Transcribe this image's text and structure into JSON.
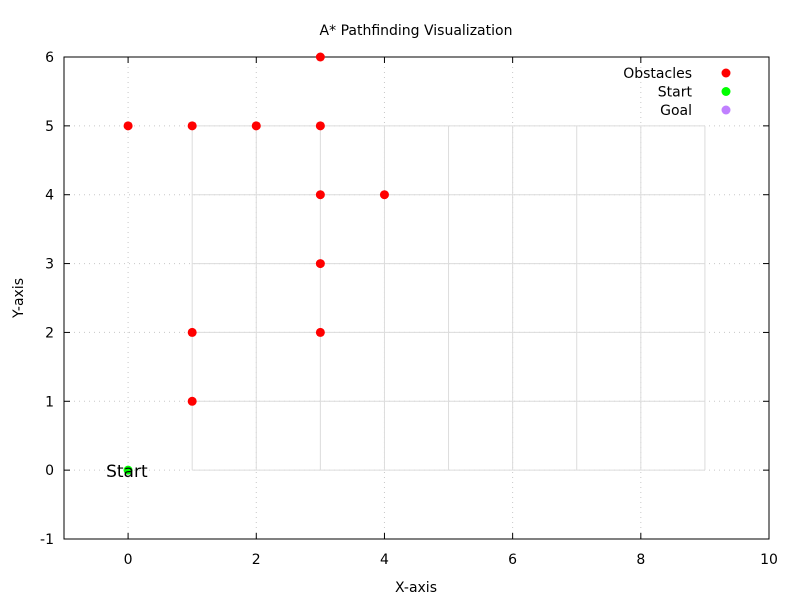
{
  "chart_data": {
    "type": "scatter",
    "title": "A* Pathfinding Visualization",
    "xlabel": "X-axis",
    "ylabel": "Y-axis",
    "xlim": [
      -1,
      10
    ],
    "ylim": [
      -1,
      6
    ],
    "xticks": [
      0,
      2,
      4,
      6,
      8,
      10
    ],
    "yticks": [
      -1,
      0,
      1,
      2,
      3,
      4,
      5,
      6
    ],
    "xtick_labels": [
      "0",
      "2",
      "4",
      "6",
      "8",
      "10"
    ],
    "ytick_labels": [
      "-1",
      "0",
      "1",
      "2",
      "3",
      "4",
      "5",
      "6"
    ],
    "grid": true,
    "legend_position": "top-right",
    "grid_cells": {
      "vertical_lines_x": [
        1,
        2,
        3,
        4,
        5,
        6,
        7,
        8,
        9
      ],
      "horizontal_lines_y": [
        0,
        1,
        2,
        3,
        4,
        5
      ],
      "x_range": [
        1,
        9
      ],
      "y_range": [
        0,
        5
      ]
    },
    "series": [
      {
        "name": "Obstacles",
        "color": "#ff0000",
        "points": [
          [
            0,
            5
          ],
          [
            1,
            5
          ],
          [
            2,
            5
          ],
          [
            3,
            5
          ],
          [
            3,
            6
          ],
          [
            3,
            4
          ],
          [
            4,
            4
          ],
          [
            3,
            3
          ],
          [
            3,
            2
          ],
          [
            1,
            2
          ],
          [
            1,
            1
          ]
        ]
      },
      {
        "name": "Start",
        "color": "#00ff00",
        "points": [
          [
            0,
            0
          ]
        ]
      },
      {
        "name": "Goal",
        "color": "#c080ff",
        "points": []
      }
    ],
    "annotations": [
      {
        "text": "Start",
        "x": 0,
        "y": 0
      }
    ]
  }
}
